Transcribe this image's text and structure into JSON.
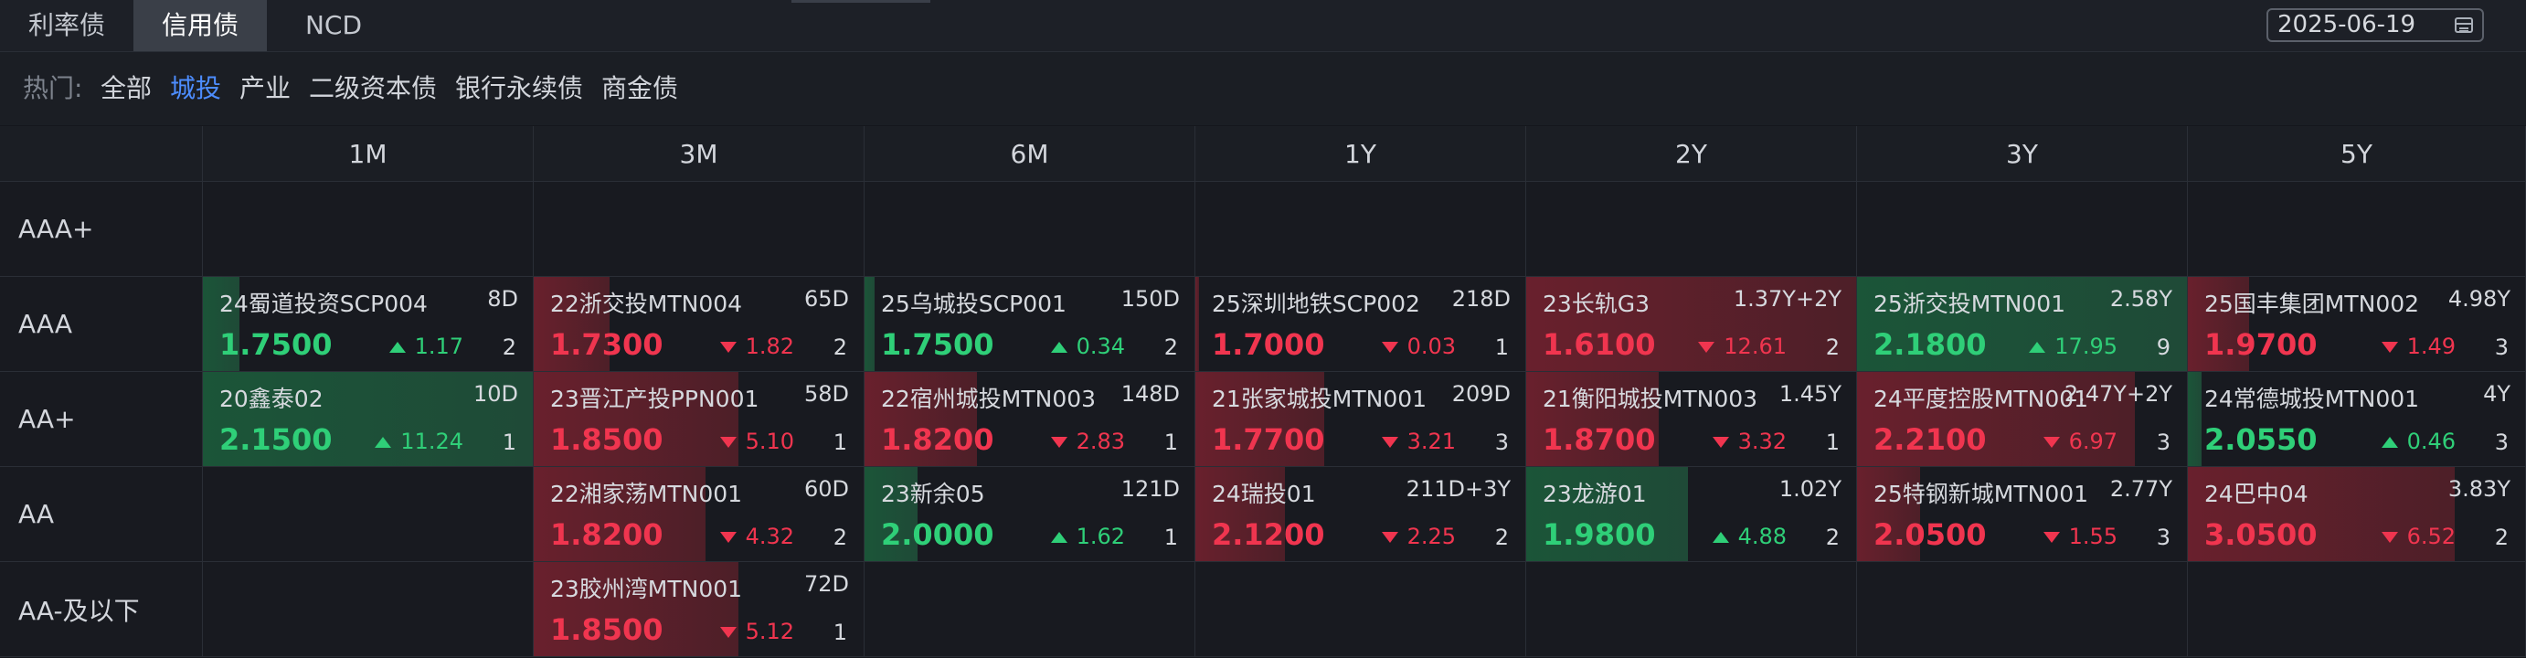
{
  "tabs": [
    {
      "label": "利率债",
      "active": false
    },
    {
      "label": "信用债",
      "active": true
    },
    {
      "label": "NCD",
      "active": false
    }
  ],
  "date": {
    "value": "2025-06-19",
    "icon": "calendar-icon"
  },
  "filter": {
    "label": "热门:",
    "chips": [
      {
        "label": "全部",
        "active": false
      },
      {
        "label": "城投",
        "active": true
      },
      {
        "label": "产业",
        "active": false
      },
      {
        "label": "二级资本债",
        "active": false
      },
      {
        "label": "银行永续债",
        "active": false
      },
      {
        "label": "商金债",
        "active": false
      }
    ]
  },
  "colors": {
    "up": "#2fcf78",
    "down": "#f0354f",
    "active_chip": "#4d8dff"
  },
  "grid": {
    "columns": [
      "1M",
      "3M",
      "6M",
      "1Y",
      "2Y",
      "3Y",
      "5Y"
    ],
    "rows": [
      {
        "label": "AAA+",
        "cells": [
          null,
          null,
          null,
          null,
          null,
          null,
          null
        ]
      },
      {
        "label": "AAA",
        "cells": [
          {
            "name": "24蜀道投资SCP004",
            "term": "8D",
            "rate": "1.7500",
            "dir": "up",
            "change": "1.17",
            "count": "2",
            "fill": 0.11
          },
          {
            "name": "22浙交投MTN004",
            "term": "65D",
            "rate": "1.7300",
            "dir": "down",
            "change": "1.82",
            "count": "2",
            "fill": 0.23
          },
          {
            "name": "25乌城投SCP001",
            "term": "150D",
            "rate": "1.7500",
            "dir": "up",
            "change": "0.34",
            "count": "2",
            "fill": 0.03
          },
          {
            "name": "25深圳地铁SCP002",
            "term": "218D",
            "rate": "1.7000",
            "dir": "down",
            "change": "0.03",
            "count": "1",
            "fill": 0.01
          },
          {
            "name": "23长轨G3",
            "term": "1.37Y+2Y",
            "rate": "1.6100",
            "dir": "down",
            "change": "12.61",
            "count": "2",
            "fill": 1.0
          },
          {
            "name": "25浙交投MTN001",
            "term": "2.58Y",
            "rate": "2.1800",
            "dir": "up",
            "change": "17.95",
            "count": "9",
            "fill": 1.0
          },
          {
            "name": "25国丰集团MTN002",
            "term": "4.98Y",
            "rate": "1.9700",
            "dir": "down",
            "change": "1.49",
            "count": "3",
            "fill": 0.18
          }
        ]
      },
      {
        "label": "AA+",
        "cells": [
          {
            "name": "20鑫泰02",
            "term": "10D",
            "rate": "2.1500",
            "dir": "up",
            "change": "11.24",
            "count": "1",
            "fill": 1.0
          },
          {
            "name": "23晋江产投PPN001",
            "term": "58D",
            "rate": "1.8500",
            "dir": "down",
            "change": "5.10",
            "count": "1",
            "fill": 0.62
          },
          {
            "name": "22宿州城投MTN003",
            "term": "148D",
            "rate": "1.8200",
            "dir": "down",
            "change": "2.83",
            "count": "1",
            "fill": 0.34
          },
          {
            "name": "21张家城投MTN001",
            "term": "209D",
            "rate": "1.7700",
            "dir": "down",
            "change": "3.21",
            "count": "3",
            "fill": 0.39
          },
          {
            "name": "21衡阳城投MTN003",
            "term": "1.45Y",
            "rate": "1.8700",
            "dir": "down",
            "change": "3.32",
            "count": "1",
            "fill": 0.4
          },
          {
            "name": "24平度控股MTN001",
            "term": "2.47Y+2Y",
            "rate": "2.2100",
            "dir": "down",
            "change": "6.97",
            "count": "3",
            "fill": 0.84
          },
          {
            "name": "24常德城投MTN001",
            "term": "4Y",
            "rate": "2.0550",
            "dir": "up",
            "change": "0.46",
            "count": "3",
            "fill": 0.04
          }
        ]
      },
      {
        "label": "AA",
        "cells": [
          null,
          {
            "name": "22湘家荡MTN001",
            "term": "60D",
            "rate": "1.8200",
            "dir": "down",
            "change": "4.32",
            "count": "2",
            "fill": 0.52
          },
          {
            "name": "23新余05",
            "term": "121D",
            "rate": "2.0000",
            "dir": "up",
            "change": "1.62",
            "count": "1",
            "fill": 0.16
          },
          {
            "name": "24瑞投01",
            "term": "211D+3Y",
            "rate": "2.1200",
            "dir": "down",
            "change": "2.25",
            "count": "2",
            "fill": 0.27
          },
          {
            "name": "23龙游01",
            "term": "1.02Y",
            "rate": "1.9800",
            "dir": "up",
            "change": "4.88",
            "count": "2",
            "fill": 0.49
          },
          {
            "name": "25特钢新城MTN001",
            "term": "2.77Y",
            "rate": "2.0500",
            "dir": "down",
            "change": "1.55",
            "count": "3",
            "fill": 0.19
          },
          {
            "name": "24巴中04",
            "term": "3.83Y",
            "rate": "3.0500",
            "dir": "down",
            "change": "6.52",
            "count": "2",
            "fill": 0.79
          }
        ]
      },
      {
        "label": "AA-及以下",
        "cells": [
          null,
          {
            "name": "23胶州湾MTN001",
            "term": "72D",
            "rate": "1.8500",
            "dir": "down",
            "change": "5.12",
            "count": "1",
            "fill": 0.62
          },
          null,
          null,
          null,
          null,
          null
        ]
      }
    ]
  }
}
